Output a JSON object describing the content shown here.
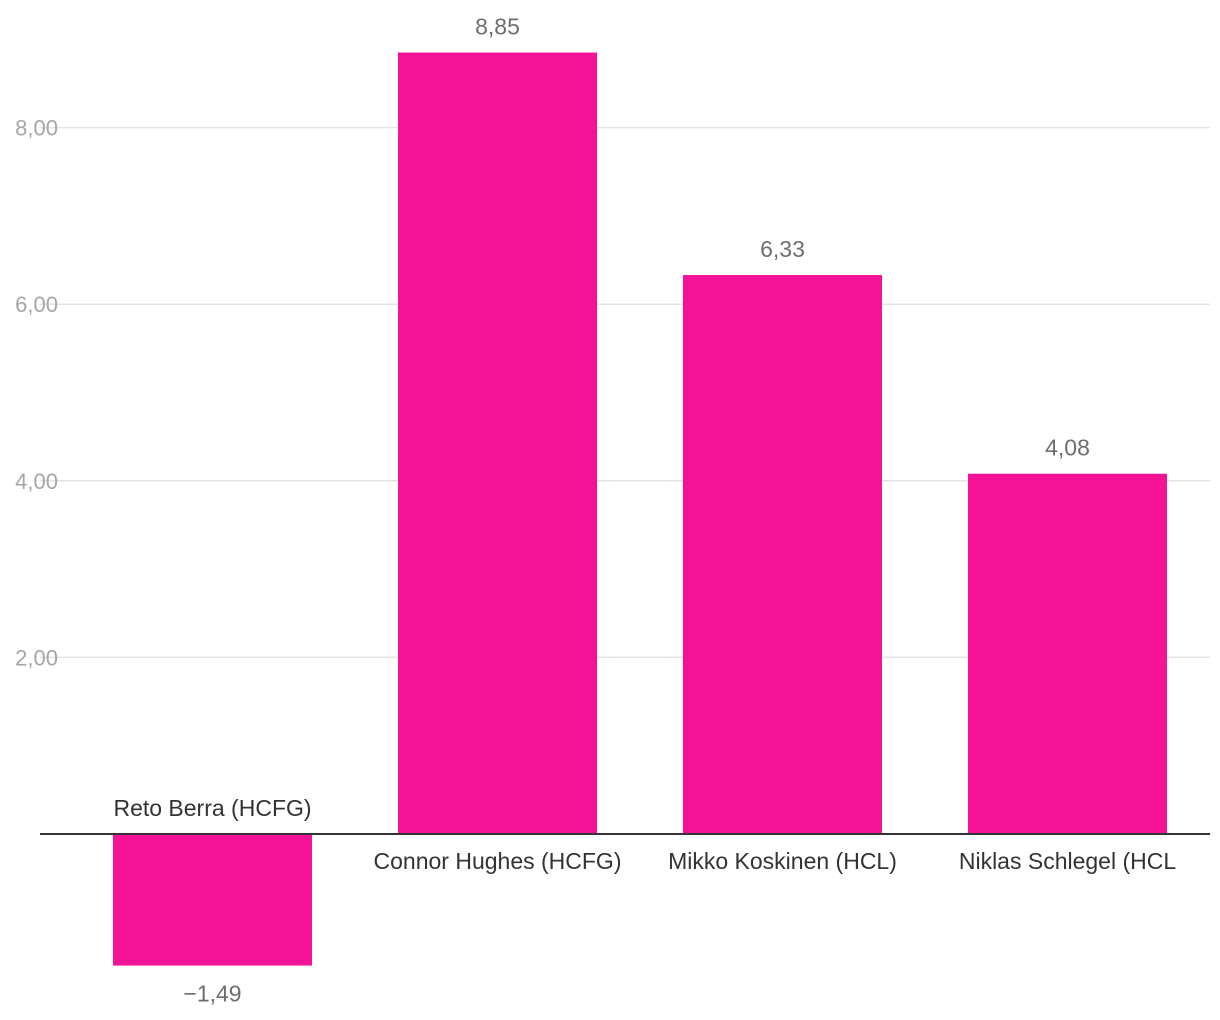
{
  "chart_data": {
    "type": "bar",
    "categories": [
      "Reto Berra (HCFG)",
      "Connor Hughes (HCFG)",
      "Mikko Koskinen (HCL)",
      "Niklas Schlegel (HCL"
    ],
    "values": [
      -1.49,
      8.85,
      6.33,
      4.08
    ],
    "value_labels": [
      "−1,49",
      "8,85",
      "6,33",
      "4,08"
    ],
    "y_ticks": [
      2,
      4,
      6,
      8
    ],
    "y_tick_labels": [
      "2,00",
      "4,00",
      "6,00",
      "8,00"
    ],
    "ylim": [
      -1.94,
      9.7
    ],
    "grid": true,
    "legend": "none",
    "colors": {
      "bar": "#f41397",
      "grid": "#e3e3e3",
      "zero_line": "#333333",
      "tick_text": "#a6a6a6",
      "category_text": "#333333",
      "value_text": "#6e6e6e"
    }
  }
}
